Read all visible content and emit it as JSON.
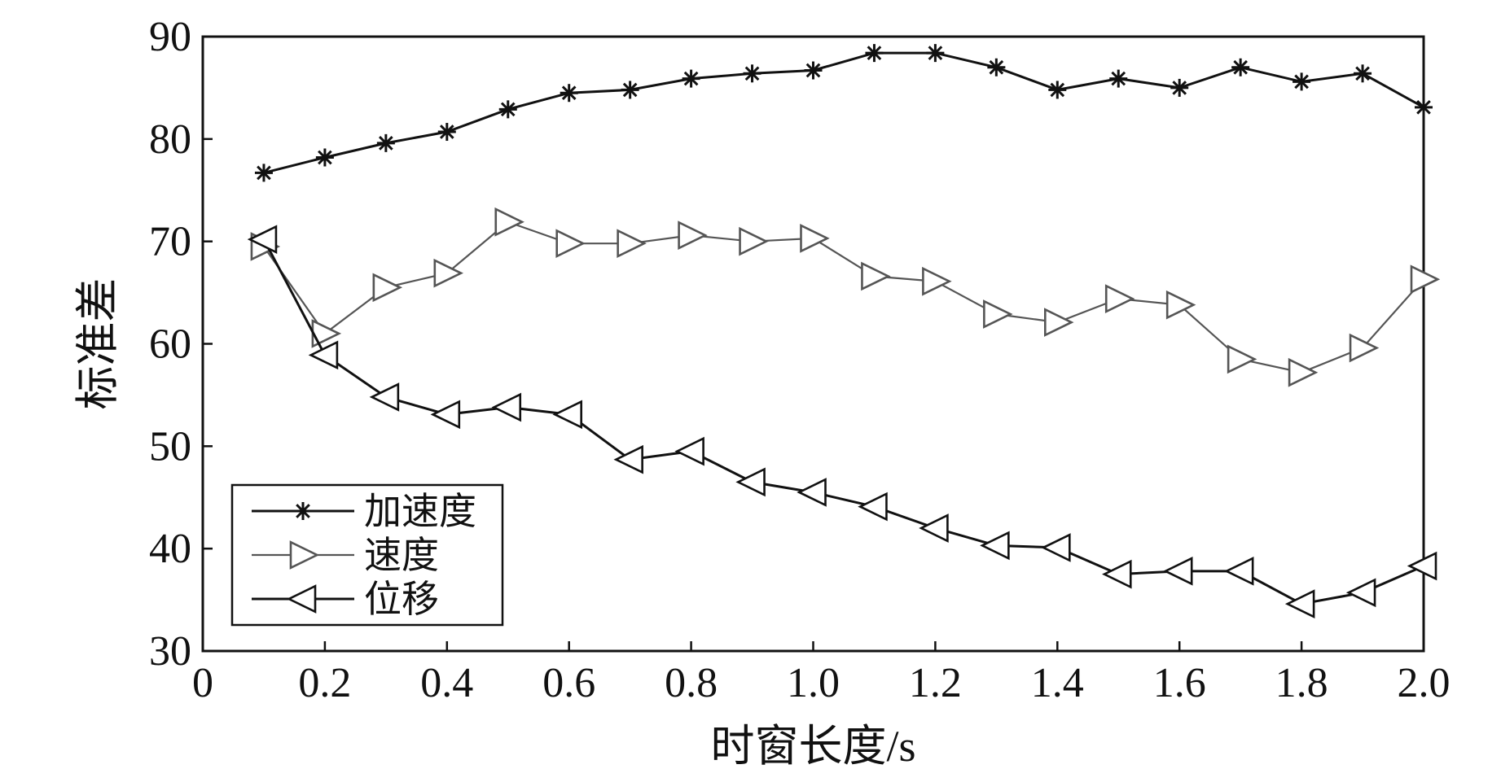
{
  "chart_data": {
    "type": "line",
    "title": "",
    "xlabel": "时窗长度/s",
    "ylabel": "标准差",
    "xlim": [
      0,
      2.0
    ],
    "ylim": [
      30,
      90
    ],
    "xticks": [
      0,
      0.2,
      0.4,
      0.6,
      0.8,
      1.0,
      1.2,
      1.4,
      1.6,
      1.8,
      2.0
    ],
    "xtick_labels": [
      "0",
      "0.2",
      "0.4",
      "0.6",
      "0.8",
      "1.0",
      "1.2",
      "1.4",
      "1.6",
      "1.8",
      "2.0"
    ],
    "yticks": [
      30,
      40,
      50,
      60,
      70,
      80,
      90
    ],
    "ytick_labels": [
      "30",
      "40",
      "50",
      "60",
      "70",
      "80",
      "90"
    ],
    "grid": false,
    "legend_position": "bottom-left",
    "x": [
      0.1,
      0.2,
      0.3,
      0.4,
      0.5,
      0.6,
      0.7,
      0.8,
      0.9,
      1.0,
      1.1,
      1.2,
      1.3,
      1.4,
      1.5,
      1.6,
      1.7,
      1.8,
      1.9,
      2.0
    ],
    "series": [
      {
        "name": "加速度",
        "marker": "asterisk",
        "color": "#111111",
        "values": [
          76.7,
          78.2,
          79.6,
          80.7,
          82.9,
          84.5,
          84.8,
          85.9,
          86.4,
          86.7,
          88.4,
          88.4,
          87.0,
          84.8,
          85.9,
          85.0,
          87.0,
          85.6,
          86.4,
          83.1
        ]
      },
      {
        "name": "速度",
        "marker": "triangle-right",
        "color": "#555555",
        "values": [
          69.5,
          61.0,
          65.5,
          66.9,
          71.9,
          69.8,
          69.8,
          70.6,
          70.0,
          70.3,
          66.6,
          66.1,
          62.9,
          62.1,
          64.4,
          63.8,
          58.5,
          57.2,
          59.6,
          66.3
        ]
      },
      {
        "name": "位移",
        "marker": "triangle-left",
        "color": "#111111",
        "values": [
          70.2,
          58.9,
          54.8,
          53.1,
          53.8,
          53.1,
          48.7,
          49.5,
          46.5,
          45.5,
          44.1,
          42.0,
          40.3,
          40.1,
          37.5,
          37.8,
          37.8,
          34.6,
          35.7,
          38.3
        ]
      }
    ]
  }
}
